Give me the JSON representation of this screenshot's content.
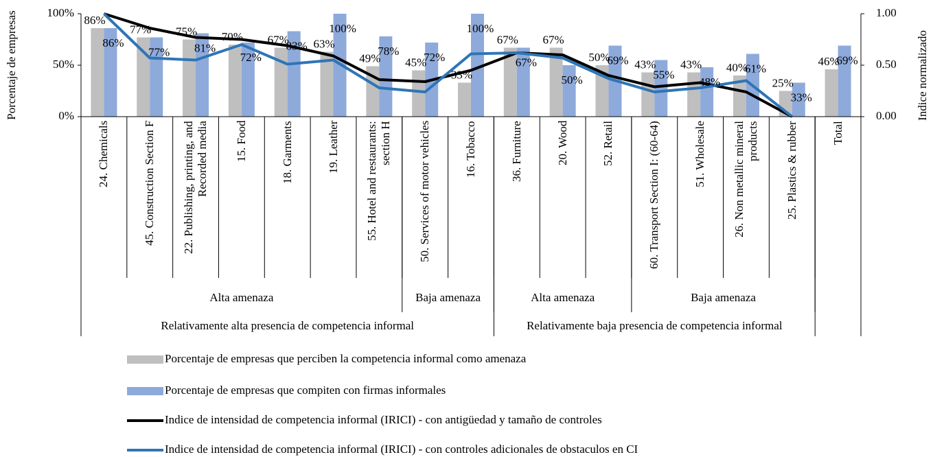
{
  "chart_data": {
    "type": "bar",
    "y_label": "Porcentaje de empresas",
    "y2_label": "Indice normalizado",
    "categories": [
      "24. Chemicals",
      "45. Construction Section F",
      "22. Publishing, printing, and Recorded media",
      "15. Food",
      "18. Garments",
      "19. Leather",
      "55. Hotel and restaurants: section H",
      "50. Services of motor vehicles",
      "16. Tobacco",
      "36. Furniture",
      "20. Wood",
      "52. Retail",
      "60. Transport Section I: (60-64)",
      "51. Wholesale",
      "26. Non metallic mineral products",
      "25. Plastics & rubber",
      "Total"
    ],
    "category_groups": [
      [
        {
          "label": "Alta amenaza",
          "count": 7
        },
        {
          "label": "Baja amenaza",
          "count": 2
        },
        {
          "label": "Alta amenaza",
          "count": 3
        },
        {
          "label": "Baja amenaza",
          "count": 4
        }
      ],
      [
        {
          "label": "Relativamente alta presencia de competencia informal",
          "count": 9
        },
        {
          "label": "Relativamente baja presencia de competencia informal",
          "count": 7
        }
      ]
    ],
    "series": [
      {
        "name": "Porcentaje de empresas que perciben la competencia informal como amenaza",
        "type": "bar",
        "color": "#bfbfbf",
        "values": [
          86,
          77,
          75,
          70,
          67,
          63,
          49,
          45,
          33,
          67,
          67,
          50,
          43,
          43,
          40,
          25,
          46
        ],
        "value_labels": [
          "86%",
          "77%",
          "75%",
          "70%",
          "67%",
          "63%",
          "49%",
          "45%",
          "33%",
          "67%",
          "67%",
          "50%",
          "43%",
          "43%",
          "40%",
          "25%",
          "46%"
        ]
      },
      {
        "name": "Porcentaje de empresas que compiten con firmas informales",
        "type": "bar",
        "color": "#8eaadb",
        "values": [
          86,
          77,
          81,
          72,
          83,
          100,
          78,
          72,
          100,
          67,
          50,
          69,
          55,
          48,
          61,
          33,
          69
        ],
        "value_labels": [
          "86%",
          "77%",
          "81%",
          "72%",
          "83%",
          "100%",
          "78%",
          "72%",
          "100%",
          "67%",
          "50%",
          "69%",
          "55%",
          "48%",
          "61%",
          "33%",
          "69%"
        ]
      },
      {
        "name": "Indice de intensidad de competencia informal (IRICI) - con antigüedad y tamaño de controles",
        "type": "line",
        "axis": "y2",
        "color": "#000000",
        "values": [
          1.0,
          0.86,
          0.77,
          0.75,
          0.69,
          0.59,
          0.36,
          0.34,
          0.45,
          0.62,
          0.6,
          0.4,
          0.29,
          0.33,
          0.24,
          0.0,
          null
        ]
      },
      {
        "name": "Indice de intensidad de competencia informal (IRICI) - con controles adicionales de obstaculos en CI",
        "type": "line",
        "axis": "y2",
        "color": "#2e75b6",
        "values": [
          1.0,
          0.57,
          0.55,
          0.7,
          0.51,
          0.55,
          0.28,
          0.24,
          0.61,
          0.62,
          0.57,
          0.37,
          0.24,
          0.28,
          0.35,
          0.0,
          null
        ]
      }
    ],
    "ylim": [
      0,
      100
    ],
    "yticks": [
      {
        "value": 0,
        "label": "0%"
      },
      {
        "value": 50,
        "label": "50%"
      },
      {
        "value": 100,
        "label": "100%"
      }
    ],
    "y2lim": [
      0,
      1
    ],
    "y2ticks": [
      {
        "value": 0,
        "label": "0.00"
      },
      {
        "value": 0.5,
        "label": "0.50"
      },
      {
        "value": 1,
        "label": "1.00"
      }
    ]
  }
}
